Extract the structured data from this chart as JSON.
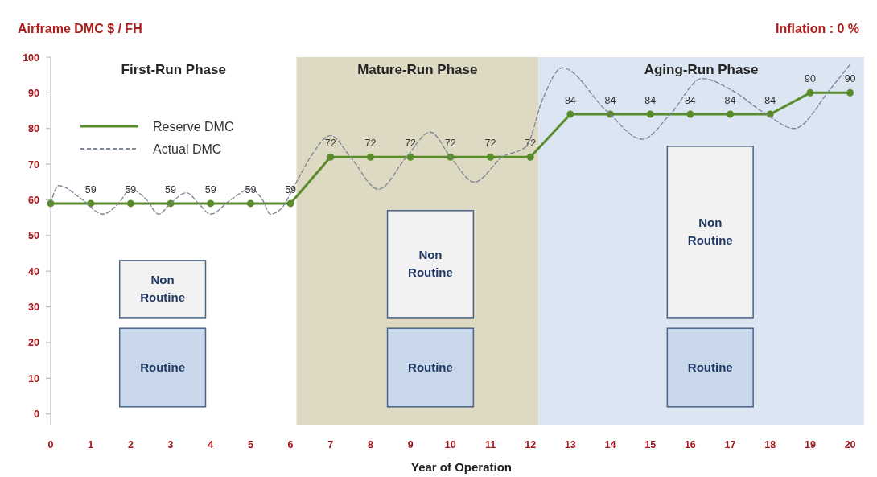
{
  "chart_data": {
    "type": "line",
    "title": "Airframe DMC $ / FH",
    "subtitle": "Inflation : 0 %",
    "xlabel": "Year of Operation",
    "x": [
      0,
      1,
      2,
      3,
      4,
      5,
      6,
      7,
      8,
      9,
      10,
      11,
      12,
      13,
      14,
      15,
      16,
      17,
      18,
      19,
      20
    ],
    "xlim": [
      0,
      20.35
    ],
    "xticks": [
      0,
      1,
      2,
      3,
      4,
      5,
      6,
      7,
      8,
      9,
      10,
      11,
      12,
      13,
      14,
      15,
      16,
      17,
      18,
      19,
      20
    ],
    "ylim": [
      -3,
      100
    ],
    "yticks": [
      0,
      10,
      20,
      30,
      40,
      50,
      60,
      70,
      80,
      90,
      100
    ],
    "legend": "top left",
    "marker": "circle",
    "annotations": [
      "First-Run Phase"
    ],
    "bands": [
      {
        "axis": "x",
        "from": 6.15,
        "to": 12.2,
        "label": "Mature-Run Phase",
        "color": "#ddd9c3"
      },
      {
        "axis": "x",
        "from": 12.2,
        "to": 20.35,
        "label": "Aging-Run Phase",
        "color": "#dce6f2"
      }
    ],
    "series": [
      {
        "type": "bar",
        "name": "Non Routine",
        "color": "#f2f2f2",
        "x": [
          2.8,
          9.5,
          16.5
        ],
        "base": [
          27,
          27,
          27
        ],
        "values": [
          16,
          30,
          48
        ]
      },
      {
        "type": "bar",
        "name": "Routine",
        "color": "#c9d7ea",
        "x": [
          2.8,
          9.5,
          16.5
        ],
        "base": [
          2,
          2,
          2
        ],
        "values": [
          22,
          22,
          22
        ]
      },
      {
        "name": "Reserve DMC",
        "color": "#5b8c2b",
        "values": [
          59,
          59,
          59,
          59,
          59,
          59,
          59,
          72,
          72,
          72,
          72,
          72,
          72,
          84,
          84,
          84,
          84,
          84,
          84,
          90,
          90
        ],
        "value_labels": [
          null,
          "59",
          "59",
          "59",
          "59",
          "59",
          "59",
          "72",
          "72",
          "72",
          "72",
          "72",
          "72",
          "84",
          "84",
          "84",
          "84",
          "84",
          "84",
          "90",
          "90"
        ]
      },
      {
        "name": "Actual DMC",
        "color": "#7f8896",
        "marker": "none",
        "line_style": "dashed",
        "x": [
          0,
          0.2,
          0.8,
          1.3,
          1.7,
          2.0,
          2.4,
          2.7,
          3.0,
          3.4,
          3.7,
          4.0,
          4.5,
          5.0,
          5.3,
          5.5,
          5.8,
          6.1,
          6.5,
          7.0,
          7.5,
          8.2,
          8.9,
          9.5,
          10.0,
          10.6,
          11.3,
          11.9,
          12.3,
          12.8,
          13.9,
          14.8,
          15.5,
          16.3,
          17.0,
          17.9,
          18.6,
          19.5,
          20.0
        ],
        "values": [
          59,
          64,
          60,
          56,
          59,
          63,
          60,
          56,
          59,
          62,
          59,
          56,
          60,
          63,
          60,
          56,
          58,
          64,
          72,
          78,
          72,
          63,
          72,
          79,
          72,
          65,
          72,
          75,
          88,
          97,
          85,
          77,
          84,
          94,
          91,
          84,
          80,
          91,
          98
        ]
      }
    ]
  }
}
